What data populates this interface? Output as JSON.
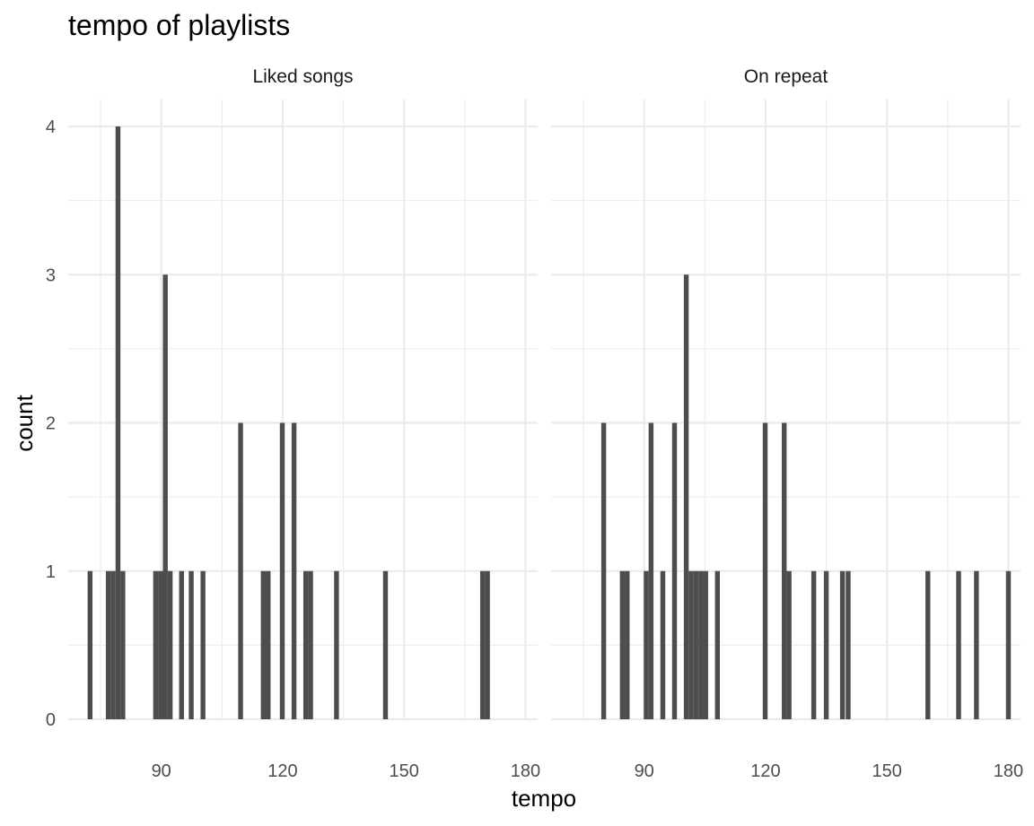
{
  "chart_data": {
    "type": "bar",
    "title": "tempo of playlists",
    "xlabel": "tempo",
    "ylabel": "count",
    "xlim": [
      67,
      183
    ],
    "ylim": [
      0,
      4
    ],
    "x_ticks": [
      "90",
      "120",
      "150",
      "180"
    ],
    "y_ticks": [
      "0",
      "1",
      "2",
      "3",
      "4"
    ],
    "grid": true,
    "bin_width": 1.2,
    "panels": [
      {
        "name": "Liked songs",
        "bins": [
          {
            "x": 72.4,
            "count": 1
          },
          {
            "x": 76.9,
            "count": 1
          },
          {
            "x": 78.1,
            "count": 1
          },
          {
            "x": 79.3,
            "count": 4
          },
          {
            "x": 80.5,
            "count": 1
          },
          {
            "x": 88.6,
            "count": 1
          },
          {
            "x": 89.8,
            "count": 1
          },
          {
            "x": 91.0,
            "count": 3
          },
          {
            "x": 92.2,
            "count": 1
          },
          {
            "x": 95.0,
            "count": 1
          },
          {
            "x": 97.4,
            "count": 1
          },
          {
            "x": 100.3,
            "count": 1
          },
          {
            "x": 109.6,
            "count": 2
          },
          {
            "x": 115.2,
            "count": 1
          },
          {
            "x": 116.4,
            "count": 1
          },
          {
            "x": 119.9,
            "count": 2
          },
          {
            "x": 122.8,
            "count": 2
          },
          {
            "x": 125.7,
            "count": 1
          },
          {
            "x": 126.9,
            "count": 1
          },
          {
            "x": 133.3,
            "count": 1
          },
          {
            "x": 145.4,
            "count": 1
          },
          {
            "x": 169.4,
            "count": 1
          },
          {
            "x": 170.6,
            "count": 1
          }
        ]
      },
      {
        "name": "On repeat",
        "bins": [
          {
            "x": 80.0,
            "count": 2
          },
          {
            "x": 84.6,
            "count": 1
          },
          {
            "x": 85.8,
            "count": 1
          },
          {
            "x": 90.5,
            "count": 1
          },
          {
            "x": 91.7,
            "count": 2
          },
          {
            "x": 94.6,
            "count": 1
          },
          {
            "x": 97.5,
            "count": 2
          },
          {
            "x": 100.4,
            "count": 3
          },
          {
            "x": 101.6,
            "count": 1
          },
          {
            "x": 102.8,
            "count": 1
          },
          {
            "x": 104.0,
            "count": 1
          },
          {
            "x": 105.2,
            "count": 1
          },
          {
            "x": 108.1,
            "count": 1
          },
          {
            "x": 119.9,
            "count": 2
          },
          {
            "x": 124.6,
            "count": 2
          },
          {
            "x": 125.8,
            "count": 1
          },
          {
            "x": 131.9,
            "count": 1
          },
          {
            "x": 135.0,
            "count": 1
          },
          {
            "x": 139.0,
            "count": 1
          },
          {
            "x": 140.4,
            "count": 1
          },
          {
            "x": 160.1,
            "count": 1
          },
          {
            "x": 167.7,
            "count": 1
          },
          {
            "x": 172.1,
            "count": 1
          },
          {
            "x": 180.0,
            "count": 1
          }
        ]
      }
    ]
  }
}
